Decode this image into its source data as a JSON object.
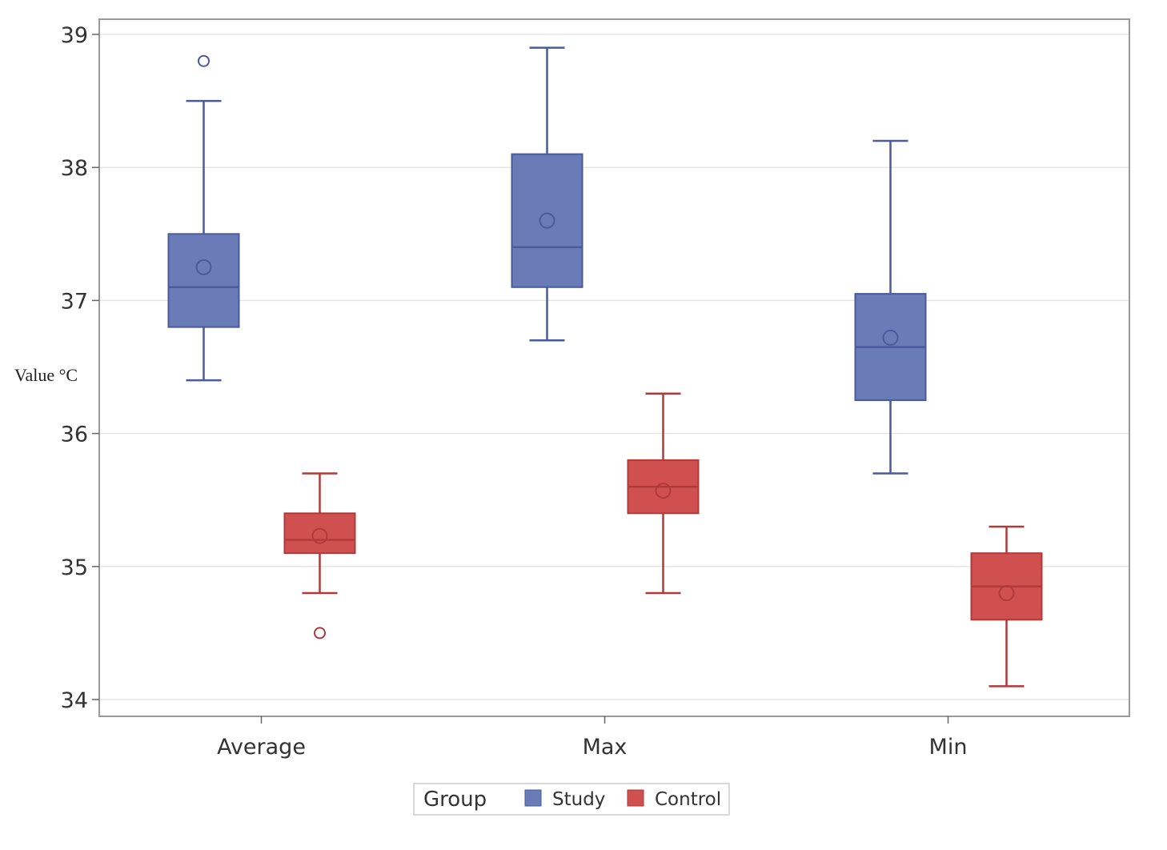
{
  "chart_data": {
    "type": "box",
    "title": "",
    "xlabel": "",
    "ylabel": "Value °C",
    "ylim": [
      34,
      39
    ],
    "yticks": [
      34,
      35,
      36,
      37,
      38,
      39
    ],
    "ytick_labels": [
      "34",
      "35",
      "36",
      "37",
      "38",
      "39"
    ],
    "grid": true,
    "categories": [
      "Average",
      "Max",
      "Min"
    ],
    "legend": {
      "title": "Group",
      "placement": "bottom",
      "entries": [
        "Study",
        "Control"
      ]
    },
    "colors": {
      "Study": "#6a7cb8",
      "Control": "#d05050",
      "study_stroke": "#4a5a9a",
      "control_stroke": "#b03a3a",
      "grid": "#e6e6e6",
      "frame": "#999999"
    },
    "series": [
      {
        "name": "Study",
        "boxes": [
          {
            "category": "Average",
            "min": 36.4,
            "q1": 36.8,
            "median": 37.1,
            "q3": 37.5,
            "max": 38.5,
            "mean": 37.25,
            "outliers": [
              38.8
            ]
          },
          {
            "category": "Max",
            "min": 36.7,
            "q1": 37.1,
            "median": 37.4,
            "q3": 38.1,
            "max": 38.9,
            "mean": 37.6,
            "outliers": []
          },
          {
            "category": "Min",
            "min": 35.7,
            "q1": 36.25,
            "median": 36.65,
            "q3": 37.05,
            "max": 38.2,
            "mean": 36.72,
            "outliers": []
          }
        ]
      },
      {
        "name": "Control",
        "boxes": [
          {
            "category": "Average",
            "min": 34.8,
            "q1": 35.1,
            "median": 35.2,
            "q3": 35.4,
            "max": 35.7,
            "mean": 35.23,
            "outliers": [
              34.5
            ]
          },
          {
            "category": "Max",
            "min": 34.8,
            "q1": 35.4,
            "median": 35.6,
            "q3": 35.8,
            "max": 36.3,
            "mean": 35.57,
            "outliers": []
          },
          {
            "category": "Min",
            "min": 34.1,
            "q1": 34.6,
            "median": 34.85,
            "q3": 35.1,
            "max": 35.3,
            "mean": 34.8,
            "outliers": []
          }
        ]
      }
    ]
  }
}
